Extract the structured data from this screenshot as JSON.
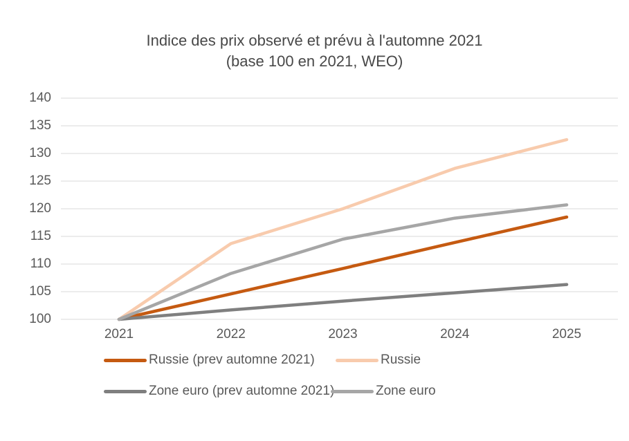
{
  "title": {
    "line1": "Indice des prix observé et prévu à l'automne 2021",
    "line2": "(base 100 en 2021, WEO)"
  },
  "chart_data": {
    "type": "line",
    "categories": [
      "2021",
      "2022",
      "2023",
      "2024",
      "2025"
    ],
    "series": [
      {
        "name": "Russie (prev automne 2021)",
        "color": "#C55A11",
        "values": [
          100,
          104.6,
          109.2,
          113.9,
          118.5
        ]
      },
      {
        "name": "Russie",
        "color": "#F8CBAD",
        "values": [
          100,
          113.7,
          120.0,
          127.3,
          132.5
        ]
      },
      {
        "name": "Zone euro (prev automne 2021)",
        "color": "#7F7F7F",
        "values": [
          100,
          101.7,
          103.3,
          104.8,
          106.3
        ]
      },
      {
        "name": "Zone euro",
        "color": "#A6A6A6",
        "values": [
          100,
          108.3,
          114.5,
          118.3,
          120.7
        ]
      }
    ],
    "title": "Indice des prix observé et prévu à l'automne 2021 (base 100 en 2021, WEO)",
    "xlabel": "",
    "ylabel": "",
    "ylim": [
      100,
      140
    ],
    "y_ticks": [
      100,
      105,
      110,
      115,
      120,
      125,
      130,
      135,
      140
    ],
    "grid": "horizontal",
    "gridline_color": "#D9D9D9",
    "legend_position": "bottom",
    "legend_rows": [
      [
        0,
        1
      ],
      [
        2,
        3
      ]
    ]
  }
}
